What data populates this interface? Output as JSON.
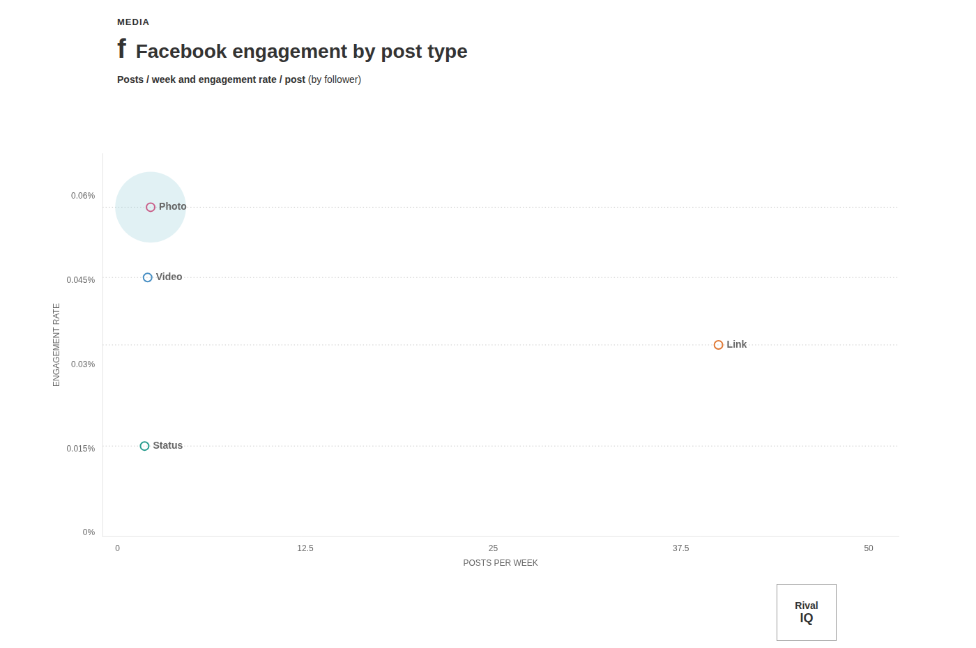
{
  "chart_data": {
    "type": "scatter",
    "title": "Facebook engagement by post type",
    "subtitle": [
      "Posts / week and engagement rate / post",
      " (by follower)"
    ],
    "annotations": [
      "MEDIA",
      "f",
      "Rival",
      "IQ"
    ],
    "xlabel": "POSTS PER WEEK",
    "ylabel": "ENGAGEMENT RATE",
    "series": [
      {
        "name": "Photo",
        "color": "#c9608a",
        "x": [
          2.2
        ],
        "values": [
          0.00058
        ],
        "bubble_size": [
          4200
        ],
        "bubble_color": "#a8d8df"
      },
      {
        "name": "Video",
        "color": "#4a90c4",
        "x": [
          2.0
        ],
        "values": [
          0.000455
        ]
      },
      {
        "name": "Link",
        "color": "#e07b39",
        "x": [
          40.0
        ],
        "values": [
          0.000335
        ]
      },
      {
        "name": "Status",
        "color": "#2a9d8f",
        "x": [
          1.8
        ],
        "values": [
          0.000155
        ]
      }
    ],
    "xlim": [
      -1,
      52
    ],
    "xticks": [
      0,
      12.5,
      25,
      37.5,
      50
    ],
    "ylim": [
      -5e-06,
      0.000675
    ],
    "yticks": [
      {
        "value": 0,
        "label": "0%"
      },
      {
        "value": 0.00015,
        "label": "0.015%"
      },
      {
        "value": 0.0003,
        "label": "0.03%"
      },
      {
        "value": 0.00045,
        "label": "0.045%"
      },
      {
        "value": 0.0006,
        "label": "0.06%"
      }
    ],
    "marker": "circle",
    "grid": false,
    "legend": false
  }
}
